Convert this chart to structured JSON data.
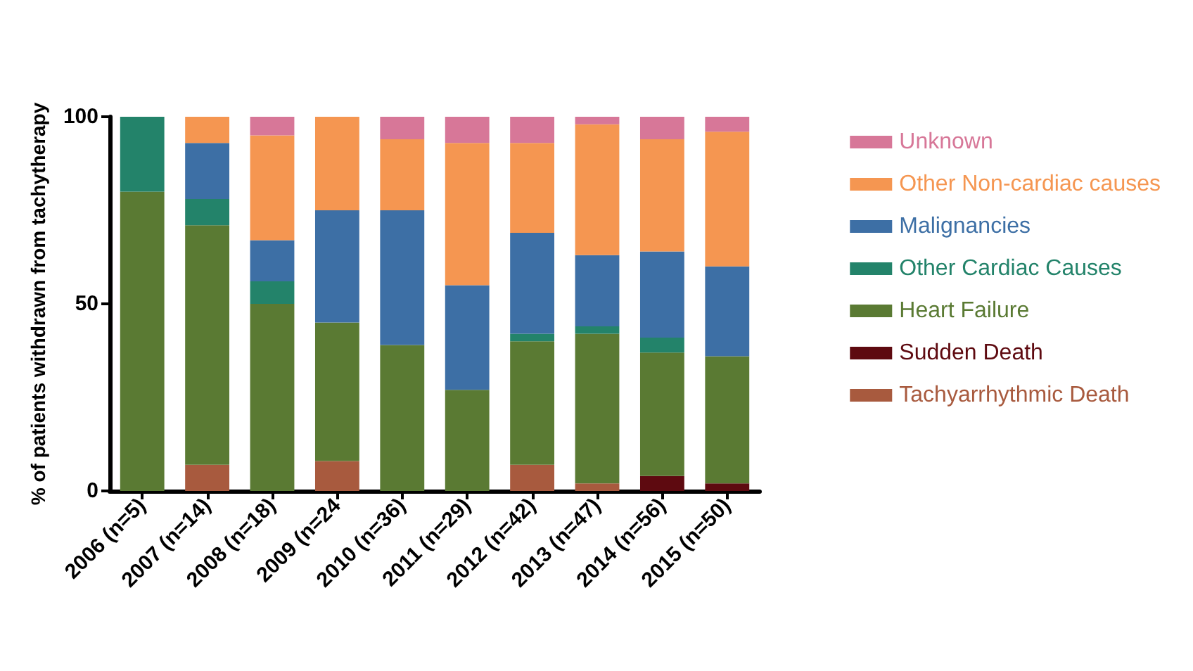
{
  "chart_data": {
    "type": "bar",
    "stacked": true,
    "ylabel": "% of patients withdrawn from tachytherapy",
    "categories": [
      "2006 (n=5)",
      "2007 (n=14)",
      "2008 (n=18)",
      "2009 (n=24",
      "2010 (n=36)",
      "2011 (n=29)",
      "2012 (n=42)",
      "2013 (n=47)",
      "2014 (n=56)",
      "2015 (n=50)"
    ],
    "series": [
      {
        "name": "Tachyarrhythmic Death",
        "color": "#a85a3e",
        "values": [
          0,
          7,
          0,
          8,
          0,
          0,
          7,
          2,
          0,
          0
        ]
      },
      {
        "name": "Sudden Death",
        "color": "#5e0a10",
        "values": [
          0,
          0,
          0,
          0,
          0,
          0,
          0,
          0,
          4,
          2
        ]
      },
      {
        "name": "Heart Failure",
        "color": "#5a7a33",
        "values": [
          80,
          64,
          50,
          37,
          39,
          27,
          33,
          40,
          33,
          34
        ]
      },
      {
        "name": "Other Cardiac Causes",
        "color": "#23836a",
        "values": [
          20,
          7,
          6,
          0,
          0,
          0,
          2,
          2,
          4,
          0
        ]
      },
      {
        "name": "Malignancies",
        "color": "#3d6fa5",
        "values": [
          0,
          15,
          11,
          30,
          36,
          28,
          27,
          19,
          23,
          24
        ]
      },
      {
        "name": "Other Non-cardiac causes",
        "color": "#f59651",
        "values": [
          0,
          7,
          28,
          25,
          19,
          38,
          24,
          35,
          30,
          36
        ]
      },
      {
        "name": "Unknown",
        "color": "#d77798",
        "values": [
          0,
          0,
          5,
          0,
          6,
          7,
          7,
          2,
          6,
          4
        ]
      }
    ],
    "ylim": [
      0,
      100
    ],
    "yticks": [
      0,
      50,
      100
    ],
    "grid": false,
    "legend": "right"
  }
}
